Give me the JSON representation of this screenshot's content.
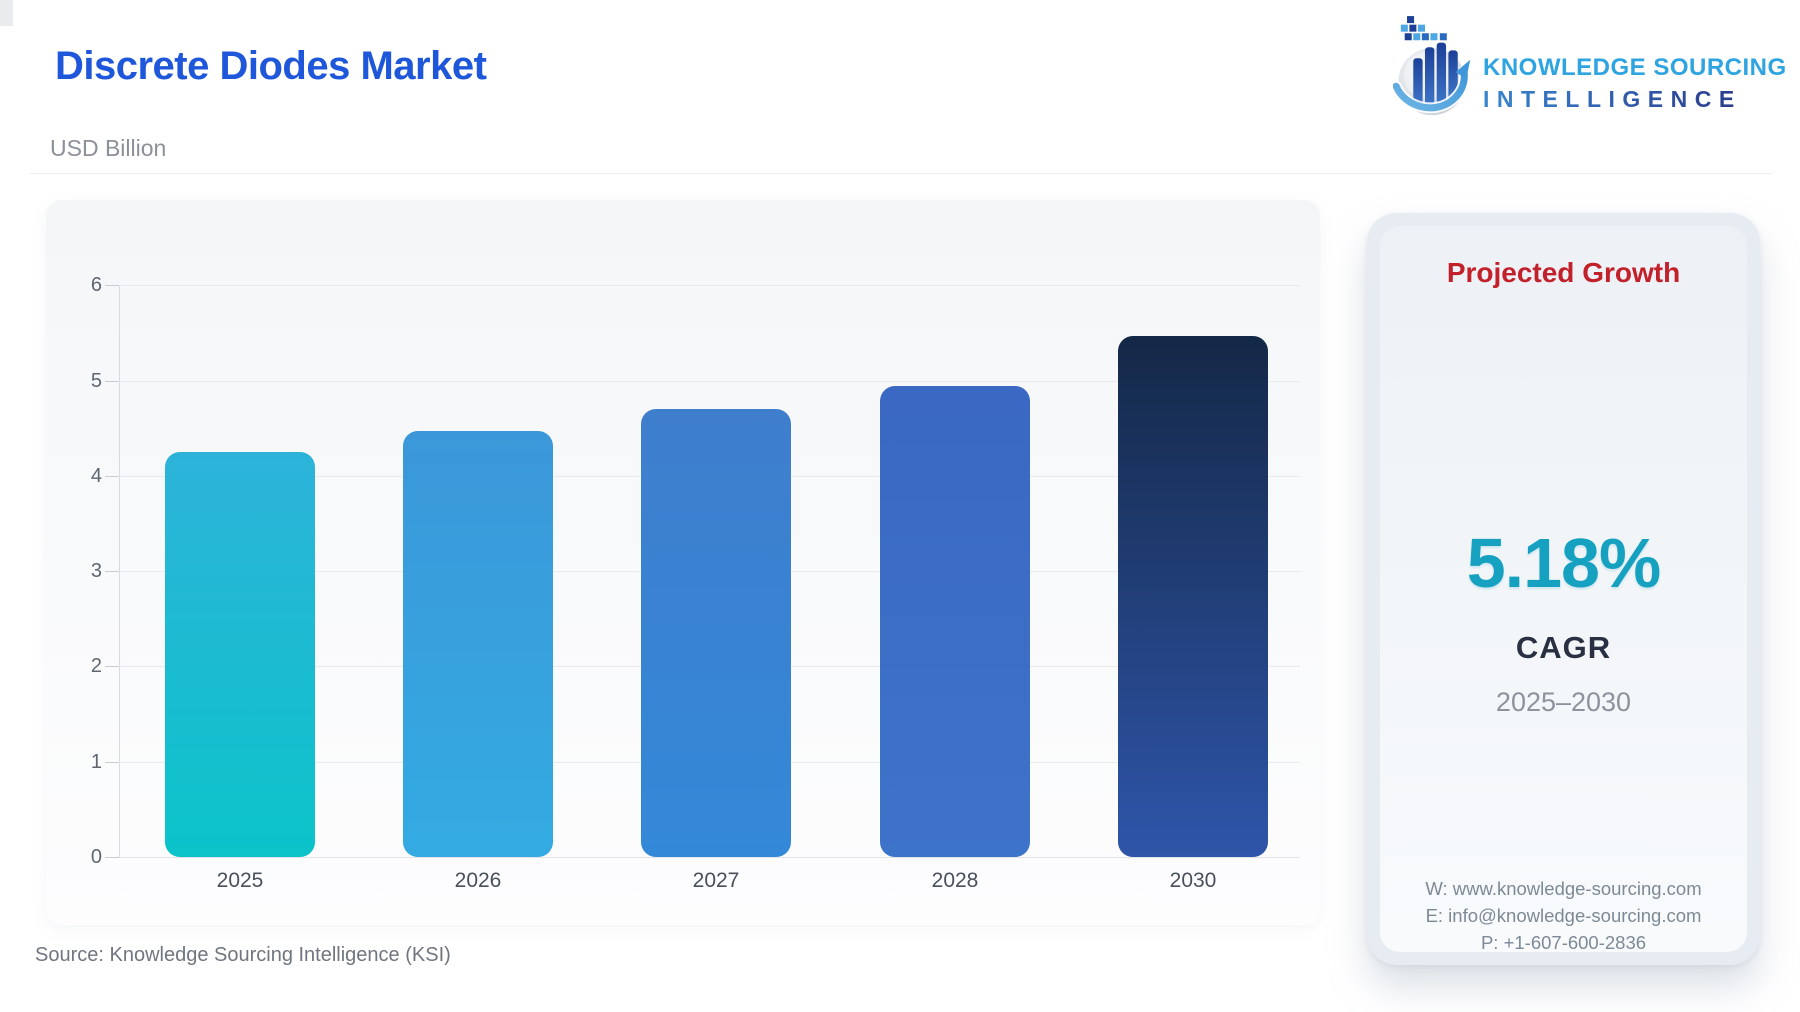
{
  "header": {
    "title": "Discrete Diodes Market",
    "subtitle": "USD Billion"
  },
  "logo": {
    "line1": "KNOWLEDGE SOURCING",
    "line2": "INTELLIGENCE"
  },
  "chart_data": {
    "type": "bar",
    "title": "Discrete Diodes Market",
    "ylabel": "USD Billion",
    "xlabel": "",
    "categories": [
      "2025",
      "2026",
      "2027",
      "2028",
      "2030"
    ],
    "values": [
      4.25,
      4.47,
      4.7,
      4.94,
      5.47
    ],
    "ylim": [
      0,
      6
    ],
    "yticks": [
      0,
      1,
      2,
      3,
      4,
      5,
      6
    ],
    "grid": true,
    "legend": false,
    "bar_gradients": [
      {
        "top": "#2db3da",
        "bottom": "#0bc3c9"
      },
      {
        "top": "#3b97d9",
        "bottom": "#33abe2"
      },
      {
        "top": "#3e7ecd",
        "bottom": "#3389d8"
      },
      {
        "top": "#3a68c2",
        "bottom": "#3e73ca"
      },
      {
        "top": "#142847",
        "bottom": "#2e55a9"
      }
    ]
  },
  "panel": {
    "heading": "Projected Growth",
    "heading_color": "#c2202a",
    "cagr_value": "5.18%",
    "cagr_value_color": "#17a1c1",
    "cagr_label": "CAGR",
    "period": "2025–2030",
    "contact": {
      "website": "W: www.knowledge-sourcing.com",
      "email": "E: info@knowledge-sourcing.com",
      "phone": "P: +1-607-600-2836"
    }
  },
  "source": "Source: Knowledge Sourcing Intelligence (KSI)",
  "colors": {
    "title_blue": "#1f57da",
    "logo_blue": "#2ea4e0",
    "card_bg": "#f7f8fa",
    "panel_bg": "#e7ecf2"
  }
}
